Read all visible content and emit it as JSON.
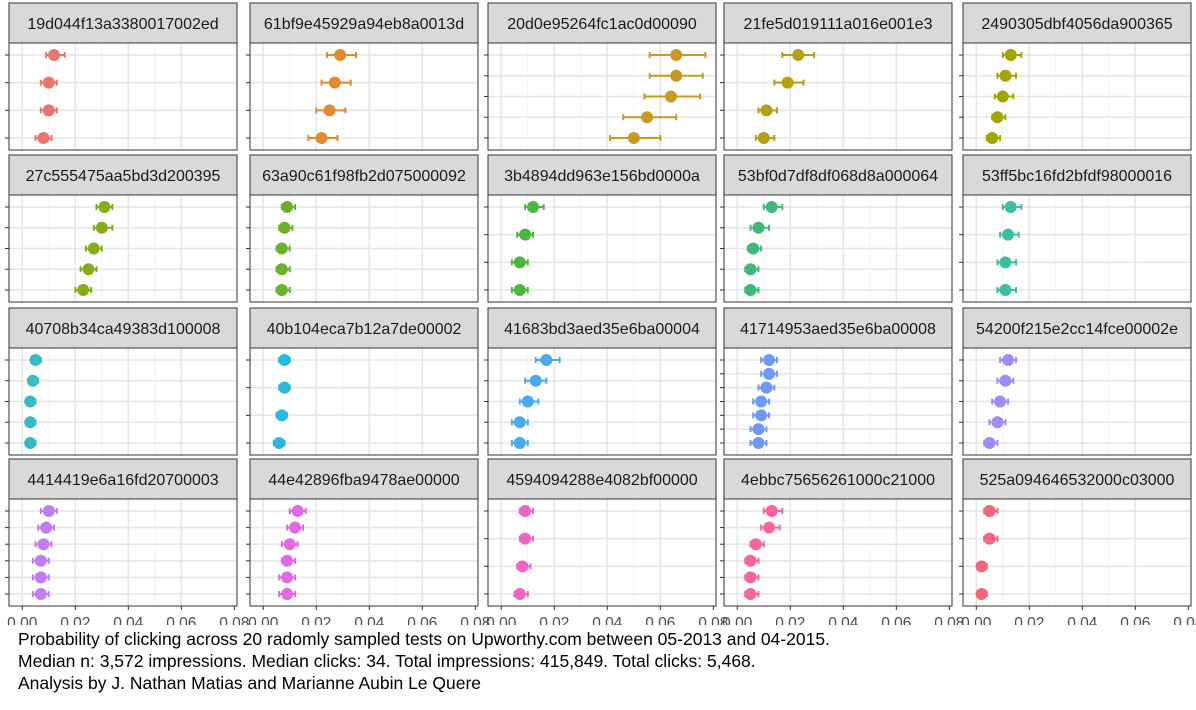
{
  "chart_data": {
    "type": "scatter",
    "subtype": "faceted point estimates with error bars",
    "layout": {
      "rows": 4,
      "cols": 5,
      "panel_background": "white",
      "strip_background": "#d9d9d9",
      "grid": true
    },
    "x_axis": {
      "range": [
        -0.005,
        0.081
      ],
      "ticks": [
        0.0,
        0.02,
        0.04,
        0.06,
        0.08
      ],
      "tick_labels": [
        "0.00",
        "0.02",
        "0.04",
        "0.06",
        "0.08"
      ],
      "shown_on": "bottom row"
    },
    "y_axis": {
      "tick_labels": "none"
    },
    "facets": [
      {
        "title": "19d044f13a3380017002ed",
        "color": "#E8766D",
        "points": [
          {
            "estimate": 0.012,
            "low": 0.009,
            "high": 0.016
          },
          {
            "estimate": 0.01,
            "low": 0.007,
            "high": 0.013
          },
          {
            "estimate": 0.01,
            "low": 0.007,
            "high": 0.013
          },
          {
            "estimate": 0.008,
            "low": 0.005,
            "high": 0.011
          }
        ]
      },
      {
        "title": "61bf9e45929a94eb8a0013d",
        "color": "#DE8C2E",
        "points": [
          {
            "estimate": 0.029,
            "low": 0.024,
            "high": 0.035
          },
          {
            "estimate": 0.027,
            "low": 0.022,
            "high": 0.033
          },
          {
            "estimate": 0.025,
            "low": 0.02,
            "high": 0.031
          },
          {
            "estimate": 0.022,
            "low": 0.017,
            "high": 0.028
          }
        ]
      },
      {
        "title": "20d0e95264fc1ac0d00090",
        "color": "#C99A23",
        "points": [
          {
            "estimate": 0.066,
            "low": 0.056,
            "high": 0.077
          },
          {
            "estimate": 0.066,
            "low": 0.056,
            "high": 0.076
          },
          {
            "estimate": 0.064,
            "low": 0.054,
            "high": 0.075
          },
          {
            "estimate": 0.055,
            "low": 0.046,
            "high": 0.066
          },
          {
            "estimate": 0.05,
            "low": 0.041,
            "high": 0.06
          }
        ]
      },
      {
        "title": "21fe5d019111a016e001e3",
        "color": "#B79F14",
        "points": [
          {
            "estimate": 0.023,
            "low": 0.017,
            "high": 0.029
          },
          {
            "estimate": 0.019,
            "low": 0.014,
            "high": 0.025
          },
          {
            "estimate": 0.011,
            "low": 0.008,
            "high": 0.015
          },
          {
            "estimate": 0.01,
            "low": 0.007,
            "high": 0.014
          }
        ]
      },
      {
        "title": "2490305dbf4056da900365",
        "color": "#A3A500",
        "points": [
          {
            "estimate": 0.013,
            "low": 0.01,
            "high": 0.017
          },
          {
            "estimate": 0.011,
            "low": 0.008,
            "high": 0.015
          },
          {
            "estimate": 0.01,
            "low": 0.007,
            "high": 0.014
          },
          {
            "estimate": 0.008,
            "low": 0.006,
            "high": 0.011
          },
          {
            "estimate": 0.006,
            "low": 0.004,
            "high": 0.009
          }
        ]
      },
      {
        "title": "27c555475aa5bd3d200395",
        "color": "#86AC1C",
        "points": [
          {
            "estimate": 0.031,
            "low": 0.028,
            "high": 0.034
          },
          {
            "estimate": 0.03,
            "low": 0.027,
            "high": 0.034
          },
          {
            "estimate": 0.027,
            "low": 0.024,
            "high": 0.03
          },
          {
            "estimate": 0.025,
            "low": 0.022,
            "high": 0.028
          },
          {
            "estimate": 0.023,
            "low": 0.02,
            "high": 0.026
          }
        ]
      },
      {
        "title": "63a90c61f98fb2d075000092",
        "color": "#6BB12B",
        "points": [
          {
            "estimate": 0.009,
            "low": 0.007,
            "high": 0.012
          },
          {
            "estimate": 0.008,
            "low": 0.006,
            "high": 0.011
          },
          {
            "estimate": 0.007,
            "low": 0.005,
            "high": 0.01
          },
          {
            "estimate": 0.007,
            "low": 0.005,
            "high": 0.01
          },
          {
            "estimate": 0.007,
            "low": 0.005,
            "high": 0.01
          }
        ]
      },
      {
        "title": "3b4894dd963e156bd0000a",
        "color": "#4DB542",
        "points": [
          {
            "estimate": 0.012,
            "low": 0.009,
            "high": 0.016
          },
          {
            "estimate": 0.009,
            "low": 0.006,
            "high": 0.012
          },
          {
            "estimate": 0.007,
            "low": 0.004,
            "high": 0.01
          },
          {
            "estimate": 0.007,
            "low": 0.004,
            "high": 0.01
          }
        ]
      },
      {
        "title": "53bf0d7df8df068d8a000064",
        "color": "#3EB97A",
        "points": [
          {
            "estimate": 0.013,
            "low": 0.01,
            "high": 0.017
          },
          {
            "estimate": 0.008,
            "low": 0.005,
            "high": 0.012
          },
          {
            "estimate": 0.006,
            "low": 0.004,
            "high": 0.009
          },
          {
            "estimate": 0.005,
            "low": 0.003,
            "high": 0.008
          },
          {
            "estimate": 0.005,
            "low": 0.003,
            "high": 0.008
          }
        ]
      },
      {
        "title": "53ff5bc16fd2bfdf98000016",
        "color": "#3DBDA1",
        "points": [
          {
            "estimate": 0.013,
            "low": 0.01,
            "high": 0.017
          },
          {
            "estimate": 0.012,
            "low": 0.009,
            "high": 0.016
          },
          {
            "estimate": 0.011,
            "low": 0.008,
            "high": 0.015
          },
          {
            "estimate": 0.011,
            "low": 0.008,
            "high": 0.015
          }
        ]
      },
      {
        "title": "40708b34ca49383d100008",
        "color": "#33BCC4",
        "points": [
          {
            "estimate": 0.005,
            "low": 0.004,
            "high": 0.007
          },
          {
            "estimate": 0.004,
            "low": 0.003,
            "high": 0.006
          },
          {
            "estimate": 0.003,
            "low": 0.002,
            "high": 0.005
          },
          {
            "estimate": 0.003,
            "low": 0.002,
            "high": 0.005
          },
          {
            "estimate": 0.003,
            "low": 0.002,
            "high": 0.005
          }
        ]
      },
      {
        "title": "40b104eca7b12a7de00002",
        "color": "#2BB8DC",
        "points": [
          {
            "estimate": 0.008,
            "low": 0.006,
            "high": 0.01
          },
          {
            "estimate": 0.008,
            "low": 0.006,
            "high": 0.01
          },
          {
            "estimate": 0.007,
            "low": 0.005,
            "high": 0.009
          },
          {
            "estimate": 0.006,
            "low": 0.004,
            "high": 0.008
          }
        ]
      },
      {
        "title": "41683bd3aed35e6ba00004",
        "color": "#4BAAEE",
        "points": [
          {
            "estimate": 0.017,
            "low": 0.013,
            "high": 0.022
          },
          {
            "estimate": 0.013,
            "low": 0.009,
            "high": 0.017
          },
          {
            "estimate": 0.01,
            "low": 0.007,
            "high": 0.014
          },
          {
            "estimate": 0.007,
            "low": 0.004,
            "high": 0.01
          },
          {
            "estimate": 0.007,
            "low": 0.004,
            "high": 0.01
          }
        ]
      },
      {
        "title": "41714953aed35e6ba00008",
        "color": "#6F98F7",
        "points": [
          {
            "estimate": 0.012,
            "low": 0.009,
            "high": 0.015
          },
          {
            "estimate": 0.012,
            "low": 0.009,
            "high": 0.015
          },
          {
            "estimate": 0.011,
            "low": 0.008,
            "high": 0.014
          },
          {
            "estimate": 0.009,
            "low": 0.006,
            "high": 0.012
          },
          {
            "estimate": 0.009,
            "low": 0.006,
            "high": 0.012
          },
          {
            "estimate": 0.008,
            "low": 0.005,
            "high": 0.011
          },
          {
            "estimate": 0.008,
            "low": 0.005,
            "high": 0.011
          }
        ]
      },
      {
        "title": "54200f215e2cc14fce00002e",
        "color": "#9C8DF7",
        "points": [
          {
            "estimate": 0.012,
            "low": 0.009,
            "high": 0.015
          },
          {
            "estimate": 0.011,
            "low": 0.008,
            "high": 0.014
          },
          {
            "estimate": 0.009,
            "low": 0.006,
            "high": 0.012
          },
          {
            "estimate": 0.008,
            "low": 0.005,
            "high": 0.011
          },
          {
            "estimate": 0.005,
            "low": 0.003,
            "high": 0.008
          }
        ]
      },
      {
        "title": "4414419e6a16fd20700003",
        "color": "#C27CF2",
        "points": [
          {
            "estimate": 0.01,
            "low": 0.007,
            "high": 0.013
          },
          {
            "estimate": 0.009,
            "low": 0.006,
            "high": 0.012
          },
          {
            "estimate": 0.008,
            "low": 0.005,
            "high": 0.011
          },
          {
            "estimate": 0.007,
            "low": 0.004,
            "high": 0.01
          },
          {
            "estimate": 0.007,
            "low": 0.004,
            "high": 0.01
          },
          {
            "estimate": 0.007,
            "low": 0.004,
            "high": 0.01
          }
        ]
      },
      {
        "title": "44e42896fba9478ae00000",
        "color": "#E06BE0",
        "points": [
          {
            "estimate": 0.013,
            "low": 0.01,
            "high": 0.016
          },
          {
            "estimate": 0.012,
            "low": 0.009,
            "high": 0.015
          },
          {
            "estimate": 0.01,
            "low": 0.007,
            "high": 0.013
          },
          {
            "estimate": 0.009,
            "low": 0.007,
            "high": 0.012
          },
          {
            "estimate": 0.009,
            "low": 0.006,
            "high": 0.012
          },
          {
            "estimate": 0.009,
            "low": 0.006,
            "high": 0.012
          }
        ]
      },
      {
        "title": "4594094288e4082bf00000",
        "color": "#EF65C6",
        "points": [
          {
            "estimate": 0.009,
            "low": 0.007,
            "high": 0.012
          },
          {
            "estimate": 0.009,
            "low": 0.007,
            "high": 0.012
          },
          {
            "estimate": 0.008,
            "low": 0.006,
            "high": 0.011
          },
          {
            "estimate": 0.007,
            "low": 0.005,
            "high": 0.01
          }
        ]
      },
      {
        "title": "4ebbc75656261000c21000",
        "color": "#F5659F",
        "points": [
          {
            "estimate": 0.013,
            "low": 0.01,
            "high": 0.017
          },
          {
            "estimate": 0.012,
            "low": 0.009,
            "high": 0.016
          },
          {
            "estimate": 0.007,
            "low": 0.005,
            "high": 0.01
          },
          {
            "estimate": 0.005,
            "low": 0.003,
            "high": 0.008
          },
          {
            "estimate": 0.005,
            "low": 0.003,
            "high": 0.008
          },
          {
            "estimate": 0.005,
            "low": 0.003,
            "high": 0.008
          }
        ]
      },
      {
        "title": "525a094646532000c03000",
        "color": "#F2677D",
        "points": [
          {
            "estimate": 0.005,
            "low": 0.003,
            "high": 0.008
          },
          {
            "estimate": 0.005,
            "low": 0.003,
            "high": 0.008
          },
          {
            "estimate": 0.002,
            "low": 0.001,
            "high": 0.004
          },
          {
            "estimate": 0.002,
            "low": 0.001,
            "high": 0.004
          }
        ]
      }
    ]
  },
  "caption": {
    "line1": "Probability of clicking across 20 radomly sampled tests on Upworthy.com between 05-2013 and 04-2015.",
    "line2": "Median n: 3,572 impressions. Median clicks: 34. Total impressions: 415,849. Total clicks: 5,468.",
    "line3": "Analysis by J. Nathan Matias and Marianne Aubin Le Quere"
  }
}
